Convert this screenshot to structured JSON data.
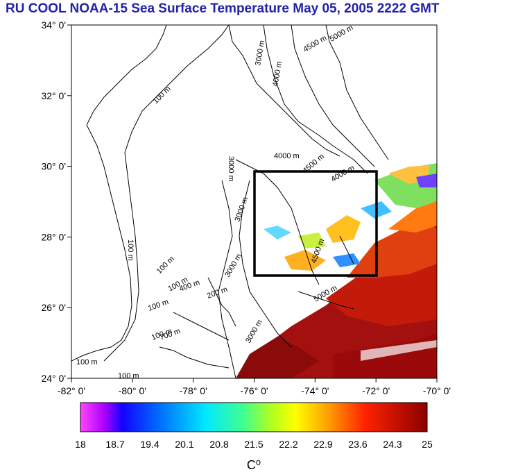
{
  "title": "RU COOL  NOAA-15 Sea Surface Temperature May 05, 2005 2222 GMT",
  "map": {
    "lat_ticks": [
      "34° 0'",
      "32° 0'",
      "30° 0'",
      "28° 0'",
      "26° 0'",
      "24° 0'"
    ],
    "lon_ticks": [
      "-82° 0'",
      "-80° 0'",
      "-78° 0'",
      "-76° 0'",
      "-74° 0'",
      "-72° 0'",
      "-70° 0'"
    ],
    "lat_range": [
      24,
      34
    ],
    "lon_range": [
      -82,
      -70
    ],
    "box": {
      "lon": [
        -76,
        -72
      ],
      "lat": [
        27,
        30
      ]
    },
    "contours": [
      "100 m",
      "100 m",
      "100 m",
      "100 m",
      "100 m",
      "100 m",
      "100 m",
      "100 m",
      "3000 m",
      "3000 m",
      "3000 m",
      "3000 m",
      "3000 m",
      "4000 m",
      "4000 m",
      "4000 m",
      "4500 m",
      "4500 m",
      "4500 m",
      "5000 m",
      "5000 m",
      "700 m",
      "400 m",
      "200 m"
    ]
  },
  "colorbar": {
    "ticks": [
      "18",
      "18.7",
      "19.4",
      "20.1",
      "20.8",
      "21.5",
      "22.2",
      "22.9",
      "23.6",
      "24.3",
      "25"
    ],
    "unit": "C⁰",
    "range": [
      18,
      25
    ]
  }
}
